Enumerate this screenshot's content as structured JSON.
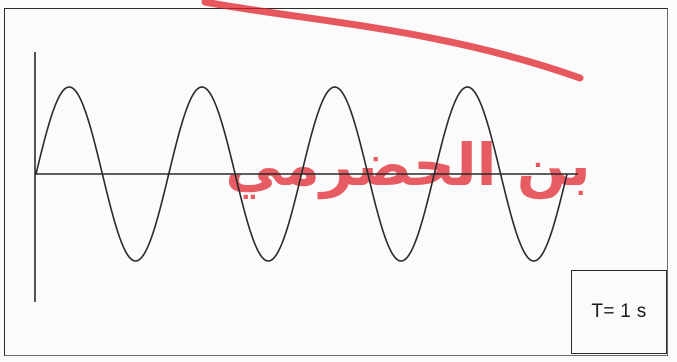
{
  "diagram": {
    "period_label": "T= 1 s",
    "wave": {
      "cycles": 4,
      "stroke_color": "#2a2a2a"
    },
    "watermark": {
      "text": "بن الحضرمي",
      "color": "#e0202a",
      "arc_color": "#e0202a"
    }
  }
}
